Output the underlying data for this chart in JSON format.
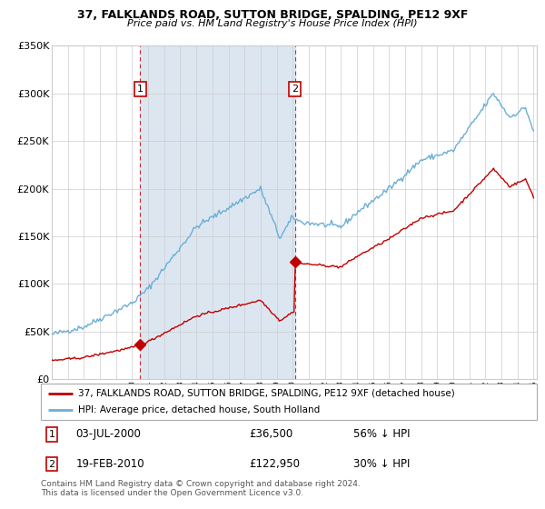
{
  "title": "37, FALKLANDS ROAD, SUTTON BRIDGE, SPALDING, PE12 9XF",
  "subtitle": "Price paid vs. HM Land Registry's House Price Index (HPI)",
  "y_min": 0,
  "y_max": 350000,
  "y_ticks": [
    0,
    50000,
    100000,
    150000,
    200000,
    250000,
    300000,
    350000
  ],
  "y_tick_labels": [
    "£0",
    "£50K",
    "£100K",
    "£150K",
    "£200K",
    "£250K",
    "£300K",
    "£350K"
  ],
  "hpi_color": "#6baed6",
  "price_color": "#c00000",
  "sale1_price": 36500,
  "sale2_price": 122950,
  "sale1_year": 2000.5,
  "sale2_year": 2010.13,
  "shade_color": "#dce6f1",
  "legend1": "37, FALKLANDS ROAD, SUTTON BRIDGE, SPALDING, PE12 9XF (detached house)",
  "legend2": "HPI: Average price, detached house, South Holland",
  "footnote1": "Contains HM Land Registry data © Crown copyright and database right 2024.",
  "footnote2": "This data is licensed under the Open Government Licence v3.0.",
  "info1_label": "1",
  "info1_date": "03-JUL-2000",
  "info1_price": "£36,500",
  "info1_hpi": "56% ↓ HPI",
  "info2_label": "2",
  "info2_date": "19-FEB-2010",
  "info2_price": "£122,950",
  "info2_hpi": "30% ↓ HPI"
}
